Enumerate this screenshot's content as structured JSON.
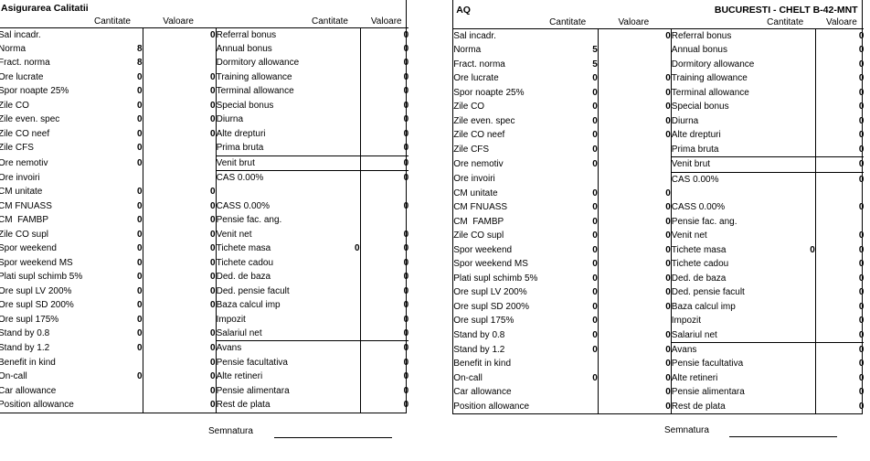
{
  "page": {
    "background_color": "#ffffff",
    "text_color": "#000000",
    "border_color": "#000000"
  },
  "panels": [
    {
      "title": "Asigurarea Calitatii",
      "title_right": "",
      "column_headers": [
        "Cantitate",
        "Valoare",
        "Cantitate",
        "Valoare"
      ],
      "signature_label": "Semnatura",
      "rows": [
        [
          "Sal incadr.",
          "",
          "0",
          "Referral bonus",
          "",
          "0"
        ],
        [
          "Norma",
          "8",
          "",
          "Annual bonus",
          "",
          "0"
        ],
        [
          "Fract. norma",
          "8",
          "",
          "Dormitory allowance",
          "",
          "0"
        ],
        [
          "Ore lucrate",
          "0",
          "0",
          "Training allowance",
          "",
          "0"
        ],
        [
          "Spor noapte 25%",
          "0",
          "0",
          "Terminal allowance",
          "",
          "0"
        ],
        [
          "Zile CO",
          "0",
          "0",
          "Special bonus",
          "",
          "0"
        ],
        [
          "Zile even. spec",
          "0",
          "0",
          "Diurna",
          "",
          "0"
        ],
        [
          "Zile CO neef",
          "0",
          "0",
          "Alte drepturi",
          "",
          "0"
        ],
        [
          "Zile CFS",
          "0",
          "",
          "Prima bruta",
          "",
          "0"
        ],
        [
          "Ore nemotiv",
          "0",
          "",
          "Venit brut",
          "",
          "0"
        ],
        [
          "Ore invoiri",
          "",
          "",
          "CAS 0.00%",
          "",
          "0"
        ],
        [
          "CM unitate",
          "0",
          "0",
          "",
          "",
          ""
        ],
        [
          "CM FNUASS",
          "0",
          "0",
          "CASS 0.00%",
          "",
          "0"
        ],
        [
          "CM  FAMBP",
          "0",
          "0",
          "Pensie fac. ang.",
          "",
          ""
        ],
        [
          "Zile CO supl",
          "0",
          "0",
          "Venit net",
          "",
          "0"
        ],
        [
          "Spor weekend",
          "0",
          "0",
          "Tichete masa",
          "0",
          "0"
        ],
        [
          "Spor weekend MS",
          "0",
          "0",
          "Tichete cadou",
          "",
          "0"
        ],
        [
          "Plati supl schimb 5%",
          "0",
          "0",
          "Ded. de baza",
          "",
          "0"
        ],
        [
          "Ore supl LV 200%",
          "0",
          "0",
          "Ded. pensie facult",
          "",
          "0"
        ],
        [
          "Ore supl SD 200%",
          "0",
          "0",
          "Baza calcul imp",
          "",
          "0"
        ],
        [
          "Ore supl 175%",
          "0",
          "",
          "Impozit",
          "",
          "0"
        ],
        [
          "Stand by 0.8",
          "0",
          "0",
          "Salariul net",
          "",
          "0"
        ],
        [
          "Stand by 1.2",
          "0",
          "0",
          "Avans",
          "",
          "0"
        ],
        [
          "Benefit in kind",
          "",
          "0",
          "Pensie facultativa",
          "",
          "0"
        ],
        [
          "On-call",
          "0",
          "0",
          "Alte retineri",
          "",
          "0"
        ],
        [
          "Car allowance",
          "",
          "0",
          "Pensie alimentara",
          "",
          "0"
        ],
        [
          "Position allowance",
          "",
          "0",
          "Rest de plata",
          "",
          "0"
        ]
      ]
    },
    {
      "title": "AQ",
      "title_right": "BUCURESTI - CHELT B-42-MNT",
      "column_headers": [
        "Cantitate",
        "Valoare",
        "Cantitate",
        "Valoare"
      ],
      "signature_label": "Semnatura",
      "rows": [
        [
          "Sal incadr.",
          "",
          "0",
          "Referral bonus",
          "",
          "0"
        ],
        [
          "Norma",
          "5",
          "",
          "Annual bonus",
          "",
          "0"
        ],
        [
          "Fract. norma",
          "5",
          "",
          "Dormitory allowance",
          "",
          "0"
        ],
        [
          "Ore lucrate",
          "0",
          "0",
          "Training allowance",
          "",
          "0"
        ],
        [
          "Spor noapte 25%",
          "0",
          "0",
          "Terminal allowance",
          "",
          "0"
        ],
        [
          "Zile CO",
          "0",
          "0",
          "Special bonus",
          "",
          "0"
        ],
        [
          "Zile even. spec",
          "0",
          "0",
          "Diurna",
          "",
          "0"
        ],
        [
          "Zile CO neef",
          "0",
          "0",
          "Alte drepturi",
          "",
          "0"
        ],
        [
          "Zile CFS",
          "0",
          "",
          "Prima bruta",
          "",
          "0"
        ],
        [
          "Ore nemotiv",
          "0",
          "",
          "Venit brut",
          "",
          "0"
        ],
        [
          "Ore invoiri",
          "",
          "",
          "CAS 0.00%",
          "",
          "0"
        ],
        [
          "CM unitate",
          "0",
          "0",
          "",
          "",
          ""
        ],
        [
          "CM FNUASS",
          "0",
          "0",
          "CASS 0.00%",
          "",
          "0"
        ],
        [
          "CM  FAMBP",
          "0",
          "0",
          "Pensie fac. ang.",
          "",
          ""
        ],
        [
          "Zile CO supl",
          "0",
          "0",
          "Venit net",
          "",
          "0"
        ],
        [
          "Spor weekend",
          "0",
          "0",
          "Tichete masa",
          "0",
          "0"
        ],
        [
          "Spor weekend MS",
          "0",
          "0",
          "Tichete cadou",
          "",
          "0"
        ],
        [
          "Plati supl schimb 5%",
          "0",
          "0",
          "Ded. de baza",
          "",
          "0"
        ],
        [
          "Ore supl LV 200%",
          "0",
          "0",
          "Ded. pensie facult",
          "",
          "0"
        ],
        [
          "Ore supl SD 200%",
          "0",
          "0",
          "Baza calcul imp",
          "",
          "0"
        ],
        [
          "Ore supl 175%",
          "0",
          "",
          "Impozit",
          "",
          "0"
        ],
        [
          "Stand by 0.8",
          "0",
          "0",
          "Salariul net",
          "",
          "0"
        ],
        [
          "Stand by 1.2",
          "0",
          "0",
          "Avans",
          "",
          "0"
        ],
        [
          "Benefit in kind",
          "",
          "0",
          "Pensie facultativa",
          "",
          "0"
        ],
        [
          "On-call",
          "0",
          "0",
          "Alte retineri",
          "",
          "0"
        ],
        [
          "Car allowance",
          "",
          "0",
          "Pensie alimentara",
          "",
          "0"
        ],
        [
          "Position allowance",
          "",
          "0",
          "Rest de plata",
          "",
          "0"
        ]
      ]
    }
  ]
}
